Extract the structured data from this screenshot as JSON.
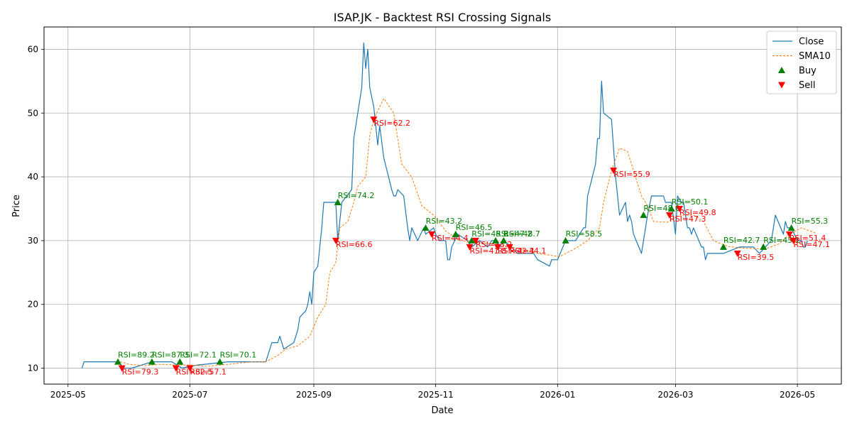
{
  "chart_data": {
    "type": "line",
    "title": "ISAP.JK - Backtest RSI Crossing Signals",
    "xlabel": "Date",
    "ylabel": "Price",
    "xlim": [
      "2025-04-19",
      "2026-05-23"
    ],
    "ylim": [
      7.5,
      63.5
    ],
    "grid": true,
    "legend_position": "top-right",
    "x_ticks": [
      {
        "date": "2025-05-01",
        "label": "2025-05"
      },
      {
        "date": "2025-07-01",
        "label": "2025-07"
      },
      {
        "date": "2025-09-01",
        "label": "2025-09"
      },
      {
        "date": "2025-11-01",
        "label": "2025-11"
      },
      {
        "date": "2026-01-01",
        "label": "2026-01"
      },
      {
        "date": "2026-03-01",
        "label": "2026-03"
      },
      {
        "date": "2026-05-01",
        "label": "2026-05"
      }
    ],
    "y_ticks": [
      10,
      20,
      30,
      40,
      50,
      60
    ],
    "colors": {
      "close": "#1f77b4",
      "sma": "#ff7f0e",
      "buy": "#008000",
      "sell": "#ff0000",
      "grid": "#b0b0b0"
    },
    "legend": [
      {
        "key": "close",
        "label": "Close"
      },
      {
        "key": "sma",
        "label": "SMA10"
      },
      {
        "key": "buy",
        "label": "Buy"
      },
      {
        "key": "sell",
        "label": "Sell"
      }
    ],
    "series": [
      {
        "name": "Close",
        "key": "close",
        "points": [
          [
            "2025-05-08",
            10
          ],
          [
            "2025-05-09",
            11
          ],
          [
            "2025-05-26",
            11
          ],
          [
            "2025-05-29",
            10
          ],
          [
            "2025-06-02",
            10
          ],
          [
            "2025-06-12",
            11
          ],
          [
            "2025-06-22",
            11
          ],
          [
            "2025-06-27",
            10
          ],
          [
            "2025-07-05",
            10.5
          ],
          [
            "2025-07-20",
            11
          ],
          [
            "2025-08-08",
            11
          ],
          [
            "2025-08-11",
            14
          ],
          [
            "2025-08-14",
            14
          ],
          [
            "2025-08-15",
            15
          ],
          [
            "2025-08-17",
            13
          ],
          [
            "2025-08-22",
            14
          ],
          [
            "2025-08-24",
            16
          ],
          [
            "2025-08-25",
            18
          ],
          [
            "2025-08-28",
            19
          ],
          [
            "2025-08-29",
            20
          ],
          [
            "2025-08-30",
            22
          ],
          [
            "2025-08-31",
            20
          ],
          [
            "2025-09-01",
            25
          ],
          [
            "2025-09-03",
            26
          ],
          [
            "2025-09-05",
            32
          ],
          [
            "2025-09-06",
            36
          ],
          [
            "2025-09-12",
            36
          ],
          [
            "2025-09-13",
            30
          ],
          [
            "2025-09-15",
            36
          ],
          [
            "2025-09-20",
            38
          ],
          [
            "2025-09-21",
            46
          ],
          [
            "2025-09-25",
            54
          ],
          [
            "2025-09-26",
            61
          ],
          [
            "2025-09-27",
            57
          ],
          [
            "2025-09-28",
            60
          ],
          [
            "2025-09-29",
            54
          ],
          [
            "2025-10-01",
            51
          ],
          [
            "2025-10-03",
            45
          ],
          [
            "2025-10-04",
            48
          ],
          [
            "2025-10-06",
            43
          ],
          [
            "2025-10-10",
            38
          ],
          [
            "2025-10-11",
            37
          ],
          [
            "2025-10-12",
            37
          ],
          [
            "2025-10-13",
            38
          ],
          [
            "2025-10-16",
            37
          ],
          [
            "2025-10-18",
            32
          ],
          [
            "2025-10-19",
            30
          ],
          [
            "2025-10-20",
            32
          ],
          [
            "2025-10-23",
            30
          ],
          [
            "2025-10-26",
            32
          ],
          [
            "2025-10-27",
            31
          ],
          [
            "2025-10-31",
            32
          ],
          [
            "2025-11-01",
            31
          ],
          [
            "2025-11-03",
            30
          ],
          [
            "2025-11-06",
            30
          ],
          [
            "2025-11-07",
            27
          ],
          [
            "2025-11-08",
            27
          ],
          [
            "2025-11-09",
            29
          ],
          [
            "2025-11-12",
            31
          ],
          [
            "2025-11-17",
            30
          ],
          [
            "2025-11-19",
            29
          ],
          [
            "2025-11-23",
            30
          ],
          [
            "2025-11-27",
            29
          ],
          [
            "2025-11-29",
            30
          ],
          [
            "2025-12-01",
            30
          ],
          [
            "2025-12-03",
            29
          ],
          [
            "2025-12-05",
            30
          ],
          [
            "2025-12-09",
            29
          ],
          [
            "2025-12-12",
            28
          ],
          [
            "2025-12-20",
            28
          ],
          [
            "2025-12-22",
            27
          ],
          [
            "2025-12-28",
            26
          ],
          [
            "2025-12-29",
            27
          ],
          [
            "2026-01-01",
            27
          ],
          [
            "2026-01-05",
            30
          ],
          [
            "2026-01-10",
            30
          ],
          [
            "2026-01-14",
            32
          ],
          [
            "2026-01-15",
            32
          ],
          [
            "2026-01-16",
            37
          ],
          [
            "2026-01-20",
            42
          ],
          [
            "2026-01-21",
            46
          ],
          [
            "2026-01-22",
            46
          ],
          [
            "2026-01-23",
            55
          ],
          [
            "2026-01-24",
            50
          ],
          [
            "2026-01-28",
            49
          ],
          [
            "2026-01-30",
            40
          ],
          [
            "2026-02-01",
            34
          ],
          [
            "2026-02-04",
            36
          ],
          [
            "2026-02-05",
            33
          ],
          [
            "2026-02-06",
            34
          ],
          [
            "2026-02-07",
            33
          ],
          [
            "2026-02-08",
            31
          ],
          [
            "2026-02-12",
            28
          ],
          [
            "2026-02-15",
            34
          ],
          [
            "2026-02-17",
            37
          ],
          [
            "2026-02-23",
            37
          ],
          [
            "2026-02-24",
            36
          ],
          [
            "2026-02-27",
            36
          ],
          [
            "2026-03-01",
            31
          ],
          [
            "2026-03-02",
            37
          ],
          [
            "2026-03-04",
            36
          ],
          [
            "2026-03-05",
            36
          ],
          [
            "2026-03-07",
            32
          ],
          [
            "2026-03-08",
            32
          ],
          [
            "2026-03-09",
            31
          ],
          [
            "2026-03-10",
            32
          ],
          [
            "2026-03-14",
            29
          ],
          [
            "2026-03-15",
            29
          ],
          [
            "2026-03-16",
            27
          ],
          [
            "2026-03-17",
            28
          ],
          [
            "2026-03-25",
            28
          ],
          [
            "2026-04-02",
            29
          ],
          [
            "2026-04-09",
            29
          ],
          [
            "2026-04-12",
            28
          ],
          [
            "2026-04-18",
            30
          ],
          [
            "2026-04-20",
            34
          ],
          [
            "2026-04-24",
            31
          ],
          [
            "2026-04-25",
            33
          ],
          [
            "2026-04-26",
            32
          ],
          [
            "2026-04-28",
            32
          ],
          [
            "2026-05-01",
            30
          ],
          [
            "2026-05-03",
            30
          ],
          [
            "2026-05-04",
            29
          ],
          [
            "2026-05-05",
            29
          ],
          [
            "2026-05-06",
            30
          ]
        ]
      },
      {
        "name": "SMA10",
        "key": "sma",
        "points": [
          [
            "2025-05-27",
            11
          ],
          [
            "2025-06-01",
            10.6
          ],
          [
            "2025-06-08",
            10.4
          ],
          [
            "2025-06-16",
            10.6
          ],
          [
            "2025-06-24",
            10.5
          ],
          [
            "2025-07-01",
            10.5
          ],
          [
            "2025-07-10",
            10.3
          ],
          [
            "2025-07-20",
            10.6
          ],
          [
            "2025-08-01",
            11
          ],
          [
            "2025-08-08",
            11
          ],
          [
            "2025-08-14",
            12
          ],
          [
            "2025-08-18",
            13
          ],
          [
            "2025-08-24",
            13.5
          ],
          [
            "2025-08-30",
            15
          ],
          [
            "2025-09-03",
            18
          ],
          [
            "2025-09-07",
            20
          ],
          [
            "2025-09-09",
            25
          ],
          [
            "2025-09-12",
            26.5
          ],
          [
            "2025-09-14",
            32
          ],
          [
            "2025-09-18",
            33
          ],
          [
            "2025-09-21",
            36
          ],
          [
            "2025-09-23",
            38.5
          ],
          [
            "2025-09-27",
            40
          ],
          [
            "2025-09-29",
            46.5
          ],
          [
            "2025-10-01",
            49
          ],
          [
            "2025-10-06",
            52.3
          ],
          [
            "2025-10-11",
            50
          ],
          [
            "2025-10-15",
            42
          ],
          [
            "2025-10-20",
            40
          ],
          [
            "2025-10-25",
            35.5
          ],
          [
            "2025-10-31",
            34
          ],
          [
            "2025-11-06",
            31.5
          ],
          [
            "2025-11-12",
            30.2
          ],
          [
            "2025-11-18",
            29.7
          ],
          [
            "2025-11-25",
            29.6
          ],
          [
            "2025-12-04",
            29.3
          ],
          [
            "2025-12-12",
            28.8
          ],
          [
            "2025-12-22",
            28
          ],
          [
            "2026-01-02",
            27.5
          ],
          [
            "2026-01-10",
            28.8
          ],
          [
            "2026-01-16",
            30
          ],
          [
            "2026-01-22",
            32
          ],
          [
            "2026-01-24",
            36
          ],
          [
            "2026-01-28",
            41
          ],
          [
            "2026-02-01",
            44.5
          ],
          [
            "2026-02-05",
            44
          ],
          [
            "2026-02-09",
            40
          ],
          [
            "2026-02-12",
            37
          ],
          [
            "2026-02-15",
            35.5
          ],
          [
            "2026-02-18",
            33
          ],
          [
            "2026-02-25",
            32.9
          ],
          [
            "2026-03-01",
            33.7
          ],
          [
            "2026-03-05",
            34
          ],
          [
            "2026-03-10",
            34
          ],
          [
            "2026-03-15",
            33
          ],
          [
            "2026-03-20",
            30
          ],
          [
            "2026-03-27",
            29.1
          ],
          [
            "2026-04-05",
            28.8
          ],
          [
            "2026-04-15",
            28.7
          ],
          [
            "2026-04-22",
            29.5
          ],
          [
            "2026-04-27",
            31
          ],
          [
            "2026-05-03",
            32
          ],
          [
            "2026-05-10",
            31.2
          ]
        ]
      }
    ],
    "signals": [
      {
        "type": "buy",
        "date": "2025-05-26",
        "price": 11,
        "label": "RSI=89.2"
      },
      {
        "type": "sell",
        "date": "2025-05-28",
        "price": 10,
        "label": "RSI=79.3"
      },
      {
        "type": "buy",
        "date": "2025-06-12",
        "price": 11,
        "label": "RSI=87.3"
      },
      {
        "type": "sell",
        "date": "2025-06-24",
        "price": 10,
        "label": "RSI=82.5"
      },
      {
        "type": "buy",
        "date": "2025-06-26",
        "price": 11,
        "label": "RSI=72.1"
      },
      {
        "type": "sell",
        "date": "2025-07-01",
        "price": 10,
        "label": "RSI=57.1"
      },
      {
        "type": "buy",
        "date": "2025-07-16",
        "price": 11,
        "label": "RSI=70.1"
      },
      {
        "type": "sell",
        "date": "2025-09-12",
        "price": 30,
        "label": "RSI=66.6"
      },
      {
        "type": "buy",
        "date": "2025-09-13",
        "price": 36,
        "label": "RSI=74.2"
      },
      {
        "type": "sell",
        "date": "2025-10-01",
        "price": 49,
        "label": "RSI=62.2"
      },
      {
        "type": "buy",
        "date": "2025-10-27",
        "price": 32,
        "label": "RSI=43.2"
      },
      {
        "type": "sell",
        "date": "2025-10-30",
        "price": 31,
        "label": "RSI=44.4"
      },
      {
        "type": "buy",
        "date": "2025-11-11",
        "price": 31,
        "label": "RSI=46.5"
      },
      {
        "type": "sell",
        "date": "2025-11-18",
        "price": 29,
        "label": "RSI=41.8"
      },
      {
        "type": "buy",
        "date": "2025-11-19",
        "price": 30,
        "label": "RSI=45.8"
      },
      {
        "type": "sell",
        "date": "2025-11-21",
        "price": 30,
        "label": "RSI=43.2"
      },
      {
        "type": "buy",
        "date": "2025-12-01",
        "price": 30,
        "label": "RSI=47.2"
      },
      {
        "type": "sell",
        "date": "2025-12-02",
        "price": 29,
        "label": "RSI=42.3"
      },
      {
        "type": "buy",
        "date": "2025-12-05",
        "price": 30,
        "label": "RSI=48.7"
      },
      {
        "type": "sell",
        "date": "2025-12-08",
        "price": 29,
        "label": "RSI=44.1"
      },
      {
        "type": "buy",
        "date": "2026-01-05",
        "price": 30,
        "label": "RSI=58.5"
      },
      {
        "type": "sell",
        "date": "2026-01-29",
        "price": 41,
        "label": "RSI=55.9"
      },
      {
        "type": "buy",
        "date": "2026-02-13",
        "price": 34,
        "label": "RSI=48.0"
      },
      {
        "type": "sell",
        "date": "2026-02-26",
        "price": 34,
        "label": "RSI=47.3"
      },
      {
        "type": "buy",
        "date": "2026-02-27",
        "price": 35,
        "label": "RSI=50.1"
      },
      {
        "type": "sell",
        "date": "2026-03-03",
        "price": 35,
        "label": "RSI=49.8"
      },
      {
        "type": "buy",
        "date": "2026-03-25",
        "price": 29,
        "label": "RSI=42.7"
      },
      {
        "type": "sell",
        "date": "2026-04-01",
        "price": 28,
        "label": "RSI=39.5"
      },
      {
        "type": "buy",
        "date": "2026-04-14",
        "price": 29,
        "label": "RSI=45.1"
      },
      {
        "type": "sell",
        "date": "2026-04-27",
        "price": 31,
        "label": "RSI=51.4"
      },
      {
        "type": "buy",
        "date": "2026-04-28",
        "price": 32,
        "label": "RSI=55.3"
      },
      {
        "type": "sell",
        "date": "2026-04-29",
        "price": 30,
        "label": "RSI=47.1"
      }
    ]
  }
}
